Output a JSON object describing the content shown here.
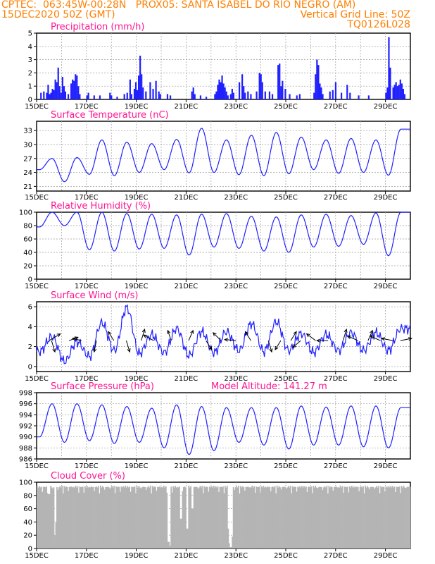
{
  "header": {
    "line1": "CPTEC:  063:45W-00:28N   PROX05: SANTA ISABEL DO RIO NEGRO (AM)",
    "line2_left": "15DEC2020 50Z (GMT)",
    "line2_right": "Vertical Grid Line: 50Z",
    "line3_right": "TQ0126L028"
  },
  "colors": {
    "header": "#ff7f00",
    "panel_title": "#ff1493",
    "series": "#2020ff",
    "cloud": "#b4b4b4",
    "arrow": "#000000"
  },
  "chart_data": [
    {
      "id": "precip",
      "type": "bar",
      "title": "Precipitation (mm/h)",
      "ylim": [
        0,
        5
      ],
      "yticks": [
        0,
        1,
        2,
        3,
        4,
        5
      ],
      "x_ticks": [
        "15DEC",
        "17DEC",
        "19DEC",
        "21DEC",
        "23DEC",
        "25DEC",
        "27DEC",
        "29DEC"
      ],
      "x_axis_days": 15,
      "bursts": [
        {
          "x": 0.3,
          "v": 0.5
        },
        {
          "x": 0.5,
          "v": 0.6
        },
        {
          "x": 0.7,
          "v": 0.5
        },
        {
          "x": 0.8,
          "v": 1.1
        },
        {
          "x": 0.9,
          "v": 0.4
        },
        {
          "x": 1.0,
          "v": 0.5
        },
        {
          "x": 1.1,
          "v": 0.8
        },
        {
          "x": 1.2,
          "v": 0.7
        },
        {
          "x": 1.3,
          "v": 1.5
        },
        {
          "x": 1.4,
          "v": 1.3
        },
        {
          "x": 1.5,
          "v": 2.4
        },
        {
          "x": 1.6,
          "v": 1.0
        },
        {
          "x": 1.7,
          "v": 0.5
        },
        {
          "x": 1.8,
          "v": 1.7
        },
        {
          "x": 1.9,
          "v": 1.0
        },
        {
          "x": 2.0,
          "v": 0.6
        },
        {
          "x": 2.2,
          "v": 0.4
        },
        {
          "x": 2.4,
          "v": 1.2
        },
        {
          "x": 2.5,
          "v": 1.5
        },
        {
          "x": 2.6,
          "v": 1.4
        },
        {
          "x": 2.7,
          "v": 1.9
        },
        {
          "x": 2.8,
          "v": 1.8
        },
        {
          "x": 2.9,
          "v": 1.0
        },
        {
          "x": 3.0,
          "v": 0.4
        },
        {
          "x": 3.5,
          "v": 0.3
        },
        {
          "x": 3.6,
          "v": 0.5
        },
        {
          "x": 4.0,
          "v": 0.3
        },
        {
          "x": 4.4,
          "v": 0.3
        },
        {
          "x": 5.1,
          "v": 0.5
        },
        {
          "x": 5.2,
          "v": 0.3
        },
        {
          "x": 5.6,
          "v": 0.2
        },
        {
          "x": 6.1,
          "v": 0.4
        },
        {
          "x": 6.3,
          "v": 0.5
        },
        {
          "x": 6.5,
          "v": 1.5
        },
        {
          "x": 6.6,
          "v": 0.4
        },
        {
          "x": 6.8,
          "v": 0.8
        },
        {
          "x": 6.9,
          "v": 1.3
        },
        {
          "x": 7.0,
          "v": 0.7
        },
        {
          "x": 7.1,
          "v": 1.8
        },
        {
          "x": 7.2,
          "v": 3.3
        },
        {
          "x": 7.3,
          "v": 1.9
        },
        {
          "x": 7.4,
          "v": 0.9
        },
        {
          "x": 7.6,
          "v": 0.6
        },
        {
          "x": 7.9,
          "v": 1.3
        },
        {
          "x": 8.1,
          "v": 0.8
        },
        {
          "x": 8.3,
          "v": 1.4
        },
        {
          "x": 8.5,
          "v": 0.6
        },
        {
          "x": 8.6,
          "v": 0.4
        },
        {
          "x": 9.1,
          "v": 0.4
        },
        {
          "x": 9.3,
          "v": 0.3
        },
        {
          "x": 10.8,
          "v": 0.6
        },
        {
          "x": 10.9,
          "v": 0.9
        },
        {
          "x": 11.0,
          "v": 0.4
        },
        {
          "x": 11.4,
          "v": 0.3
        },
        {
          "x": 11.8,
          "v": 0.2
        },
        {
          "x": 12.4,
          "v": 0.4
        },
        {
          "x": 12.5,
          "v": 0.6
        },
        {
          "x": 12.6,
          "v": 1.1
        },
        {
          "x": 12.7,
          "v": 1.5
        },
        {
          "x": 12.8,
          "v": 1.3
        },
        {
          "x": 12.9,
          "v": 1.8
        },
        {
          "x": 13.0,
          "v": 1.2
        },
        {
          "x": 13.1,
          "v": 0.9
        },
        {
          "x": 13.2,
          "v": 0.6
        },
        {
          "x": 13.3,
          "v": 0.3
        },
        {
          "x": 13.5,
          "v": 0.4
        },
        {
          "x": 13.6,
          "v": 0.8
        },
        {
          "x": 13.7,
          "v": 0.5
        },
        {
          "x": 14.1,
          "v": 1.3
        },
        {
          "x": 14.3,
          "v": 1.9
        },
        {
          "x": 14.4,
          "v": 1.0
        },
        {
          "x": 14.5,
          "v": 0.5
        },
        {
          "x": 14.7,
          "v": 0.6
        },
        {
          "x": 14.9,
          "v": 0.4
        },
        {
          "x": 15.3,
          "v": 0.6
        },
        {
          "x": 15.5,
          "v": 2.0
        },
        {
          "x": 15.6,
          "v": 1.9
        },
        {
          "x": 15.7,
          "v": 1.3
        },
        {
          "x": 15.9,
          "v": 0.6
        },
        {
          "x": 16.2,
          "v": 0.6
        },
        {
          "x": 16.4,
          "v": 0.4
        },
        {
          "x": 16.8,
          "v": 2.6
        },
        {
          "x": 16.9,
          "v": 2.7
        },
        {
          "x": 17.0,
          "v": 1.0
        },
        {
          "x": 17.1,
          "v": 1.4
        },
        {
          "x": 17.3,
          "v": 0.8
        },
        {
          "x": 17.6,
          "v": 0.4
        },
        {
          "x": 18.1,
          "v": 0.3
        },
        {
          "x": 18.3,
          "v": 0.4
        },
        {
          "x": 19.3,
          "v": 0.5
        },
        {
          "x": 19.4,
          "v": 1.9
        },
        {
          "x": 19.5,
          "v": 3.0
        },
        {
          "x": 19.6,
          "v": 2.6
        },
        {
          "x": 19.7,
          "v": 1.2
        },
        {
          "x": 19.8,
          "v": 0.9
        },
        {
          "x": 19.9,
          "v": 0.4
        },
        {
          "x": 20.4,
          "v": 0.6
        },
        {
          "x": 20.6,
          "v": 0.7
        },
        {
          "x": 20.8,
          "v": 1.3
        },
        {
          "x": 21.2,
          "v": 0.5
        },
        {
          "x": 21.6,
          "v": 1.1
        },
        {
          "x": 21.8,
          "v": 0.5
        },
        {
          "x": 22.4,
          "v": 0.3
        },
        {
          "x": 23.1,
          "v": 0.3
        },
        {
          "x": 24.3,
          "v": 0.5
        },
        {
          "x": 24.4,
          "v": 0.9
        },
        {
          "x": 24.5,
          "v": 4.7
        },
        {
          "x": 24.6,
          "v": 2.4
        },
        {
          "x": 24.8,
          "v": 0.9
        },
        {
          "x": 24.9,
          "v": 1.1
        },
        {
          "x": 25.0,
          "v": 1.3
        },
        {
          "x": 25.1,
          "v": 1.0
        },
        {
          "x": 25.2,
          "v": 1.1
        },
        {
          "x": 25.3,
          "v": 1.5
        },
        {
          "x": 25.4,
          "v": 1.2
        },
        {
          "x": 25.5,
          "v": 0.8
        },
        {
          "x": 25.6,
          "v": 0.4
        }
      ]
    },
    {
      "id": "temp",
      "type": "line",
      "title": "Surface Temperature (nC)",
      "ylim": [
        20,
        35
      ],
      "yticks": [
        21,
        24,
        27,
        30,
        33
      ],
      "x_ticks": [
        "15DEC",
        "17DEC",
        "19DEC",
        "21DEC",
        "23DEC",
        "25DEC",
        "27DEC",
        "29DEC"
      ],
      "x_axis_days": 15,
      "minima": [
        24.6,
        22.0,
        23.6,
        23.3,
        24.0,
        24.6,
        23.9,
        24.0,
        23.5,
        23.3,
        23.7,
        24.6,
        23.8,
        24.0,
        23.4
      ],
      "maxima": [
        27.0,
        27.2,
        31.0,
        30.5,
        30.2,
        31.1,
        33.5,
        31.0,
        32.0,
        32.6,
        31.6,
        31.0,
        31.3,
        31.0,
        33.3
      ]
    },
    {
      "id": "rh",
      "type": "line",
      "title": "Relative Humidity (%)",
      "ylim": [
        0,
        100
      ],
      "yticks": [
        0,
        20,
        40,
        60,
        80,
        100
      ],
      "x_ticks": [
        "15DEC",
        "17DEC",
        "19DEC",
        "21DEC",
        "23DEC",
        "25DEC",
        "27DEC",
        "29DEC"
      ],
      "x_axis_days": 15,
      "minima": [
        78,
        80,
        44,
        42,
        45,
        46,
        36,
        48,
        46,
        42,
        40,
        48,
        49,
        52,
        35
      ],
      "maxima": [
        100,
        100,
        100,
        98,
        97,
        96,
        97,
        98,
        94,
        93,
        96,
        97,
        95,
        99,
        100
      ]
    },
    {
      "id": "wind",
      "type": "line",
      "title": "Surface Wind (m/s)",
      "ylim": [
        -0.5,
        6.5
      ],
      "yticks": [
        0,
        2,
        4,
        6
      ],
      "x_ticks": [
        "15DEC",
        "17DEC",
        "19DEC",
        "21DEC",
        "23DEC",
        "25DEC",
        "27DEC",
        "29DEC"
      ],
      "x_axis_days": 15,
      "minima": [
        1.5,
        0.5,
        1.0,
        1.6,
        1.3,
        1.4,
        1.1,
        1.4,
        1.6,
        1.5,
        1.6,
        1.4,
        1.6,
        1.6,
        1.6
      ],
      "maxima": [
        3.0,
        2.5,
        4.4,
        5.9,
        3.2,
        3.8,
        3.5,
        3.5,
        4.3,
        4.5,
        3.3,
        3.2,
        3.4,
        3.4,
        3.8
      ],
      "arrows": [
        {
          "day": 0.5,
          "u": 1.0,
          "v": 0.6
        },
        {
          "day": 0.6,
          "u": 0.3,
          "v": -1.0
        },
        {
          "day": 1.3,
          "u": 0.8,
          "v": 0.3
        },
        {
          "day": 1.8,
          "u": -0.8,
          "v": 0.2
        },
        {
          "day": 2.4,
          "u": -0.2,
          "v": -1.0
        },
        {
          "day": 3.1,
          "u": -0.5,
          "v": 0.8
        },
        {
          "day": 3.6,
          "u": 0.3,
          "v": -1.0
        },
        {
          "day": 4.2,
          "u": 0.3,
          "v": 1.0
        },
        {
          "day": 4.7,
          "u": -0.9,
          "v": 0.5
        },
        {
          "day": 5.4,
          "u": -0.3,
          "v": 0.9
        },
        {
          "day": 6.1,
          "u": 0.4,
          "v": 0.9
        },
        {
          "day": 6.8,
          "u": 0.5,
          "v": -0.8
        },
        {
          "day": 7.4,
          "u": -0.7,
          "v": 0.7
        },
        {
          "day": 8.0,
          "u": -1.0,
          "v": 0.1
        },
        {
          "day": 8.6,
          "u": -0.5,
          "v": 0.8
        },
        {
          "day": 9.3,
          "u": 0.3,
          "v": -1.0
        },
        {
          "day": 9.8,
          "u": -0.5,
          "v": -0.8
        },
        {
          "day": 10.2,
          "u": 0.5,
          "v": 0.8
        },
        {
          "day": 10.6,
          "u": -0.7,
          "v": -0.6
        },
        {
          "day": 11.2,
          "u": -0.8,
          "v": 0.6
        },
        {
          "day": 11.7,
          "u": -1.0,
          "v": 0.0
        },
        {
          "day": 12.3,
          "u": 0.3,
          "v": 1.0
        },
        {
          "day": 12.9,
          "u": -0.9,
          "v": 0.4
        },
        {
          "day": 13.3,
          "u": 0.4,
          "v": 0.9
        },
        {
          "day": 13.8,
          "u": -0.9,
          "v": 0.4
        },
        {
          "day": 14.3,
          "u": -1.0,
          "v": 0.2
        },
        {
          "day": 14.6,
          "u": 1.0,
          "v": 0.2
        }
      ]
    },
    {
      "id": "pres",
      "type": "line",
      "title": "Surface Pressure (hPa)",
      "annotation": "Model Altitude: 141.27 m",
      "ylim": [
        986,
        998
      ],
      "yticks": [
        986,
        988,
        990,
        992,
        994,
        996,
        998
      ],
      "x_ticks": [
        "15DEC",
        "17DEC",
        "19DEC",
        "21DEC",
        "23DEC",
        "25DEC",
        "27DEC",
        "29DEC"
      ],
      "x_axis_days": 15,
      "minima": [
        990.0,
        989.0,
        989.3,
        988.8,
        989.0,
        988.0,
        986.8,
        987.5,
        989.0,
        988.5,
        987.8,
        988.5,
        988.5,
        988.2,
        988.0
      ],
      "maxima": [
        996.0,
        996.0,
        995.8,
        995.5,
        995.2,
        995.8,
        995.5,
        995.3,
        995.3,
        995.3,
        995.6,
        995.4,
        995.6,
        995.6,
        995.3
      ]
    },
    {
      "id": "cloud",
      "type": "bar",
      "title": "Cloud Cover (%)",
      "ylim": [
        0,
        100
      ],
      "yticks": [
        0,
        20,
        40,
        60,
        80,
        100
      ],
      "x_ticks": [
        "15DEC",
        "17DEC",
        "19DEC",
        "21DEC",
        "23DEC",
        "25DEC",
        "27DEC",
        "29DEC"
      ],
      "x_axis_days": 15,
      "base": 95,
      "dips": [
        {
          "day": 0.5,
          "v": 82
        },
        {
          "day": 0.75,
          "v": 20
        },
        {
          "day": 0.78,
          "v": 40
        },
        {
          "day": 5.3,
          "v": 10
        },
        {
          "day": 5.35,
          "v": 4
        },
        {
          "day": 5.8,
          "v": 45
        },
        {
          "day": 6.05,
          "v": 30
        },
        {
          "day": 6.25,
          "v": 60
        },
        {
          "day": 7.7,
          "v": 30
        },
        {
          "day": 7.75,
          "v": 8
        },
        {
          "day": 7.8,
          "v": 2
        },
        {
          "day": 7.85,
          "v": 18
        }
      ]
    }
  ]
}
